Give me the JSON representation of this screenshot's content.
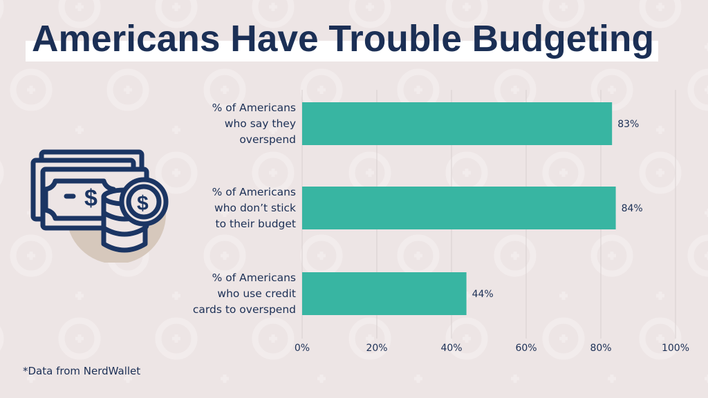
{
  "title": "Americans Have Trouble Budgeting",
  "source_note": "*Data from NerdWallet",
  "icon": "money-bills-and-coins-icon",
  "colors": {
    "background": "#ede5e5",
    "bar": "#38b5a2",
    "text": "#1b2f55",
    "icon_circle": "#d6c8bc",
    "grid": "#d8d0d0"
  },
  "chart_data": {
    "type": "bar",
    "orientation": "horizontal",
    "categories": [
      [
        "% of Americans",
        "who say they",
        "overspend"
      ],
      [
        "% of Americans",
        "who don’t stick",
        "to their budget"
      ],
      [
        "% of Americans",
        "who use credit",
        "cards to overspend"
      ]
    ],
    "values": [
      83,
      84,
      44
    ],
    "data_labels": [
      "83%",
      "84%",
      "44%"
    ],
    "xlim": [
      0,
      100
    ],
    "xticks": [
      0,
      20,
      40,
      60,
      80,
      100
    ],
    "xtick_labels": [
      "0%",
      "20%",
      "40%",
      "60%",
      "80%",
      "100%"
    ],
    "grid": "vertical"
  }
}
